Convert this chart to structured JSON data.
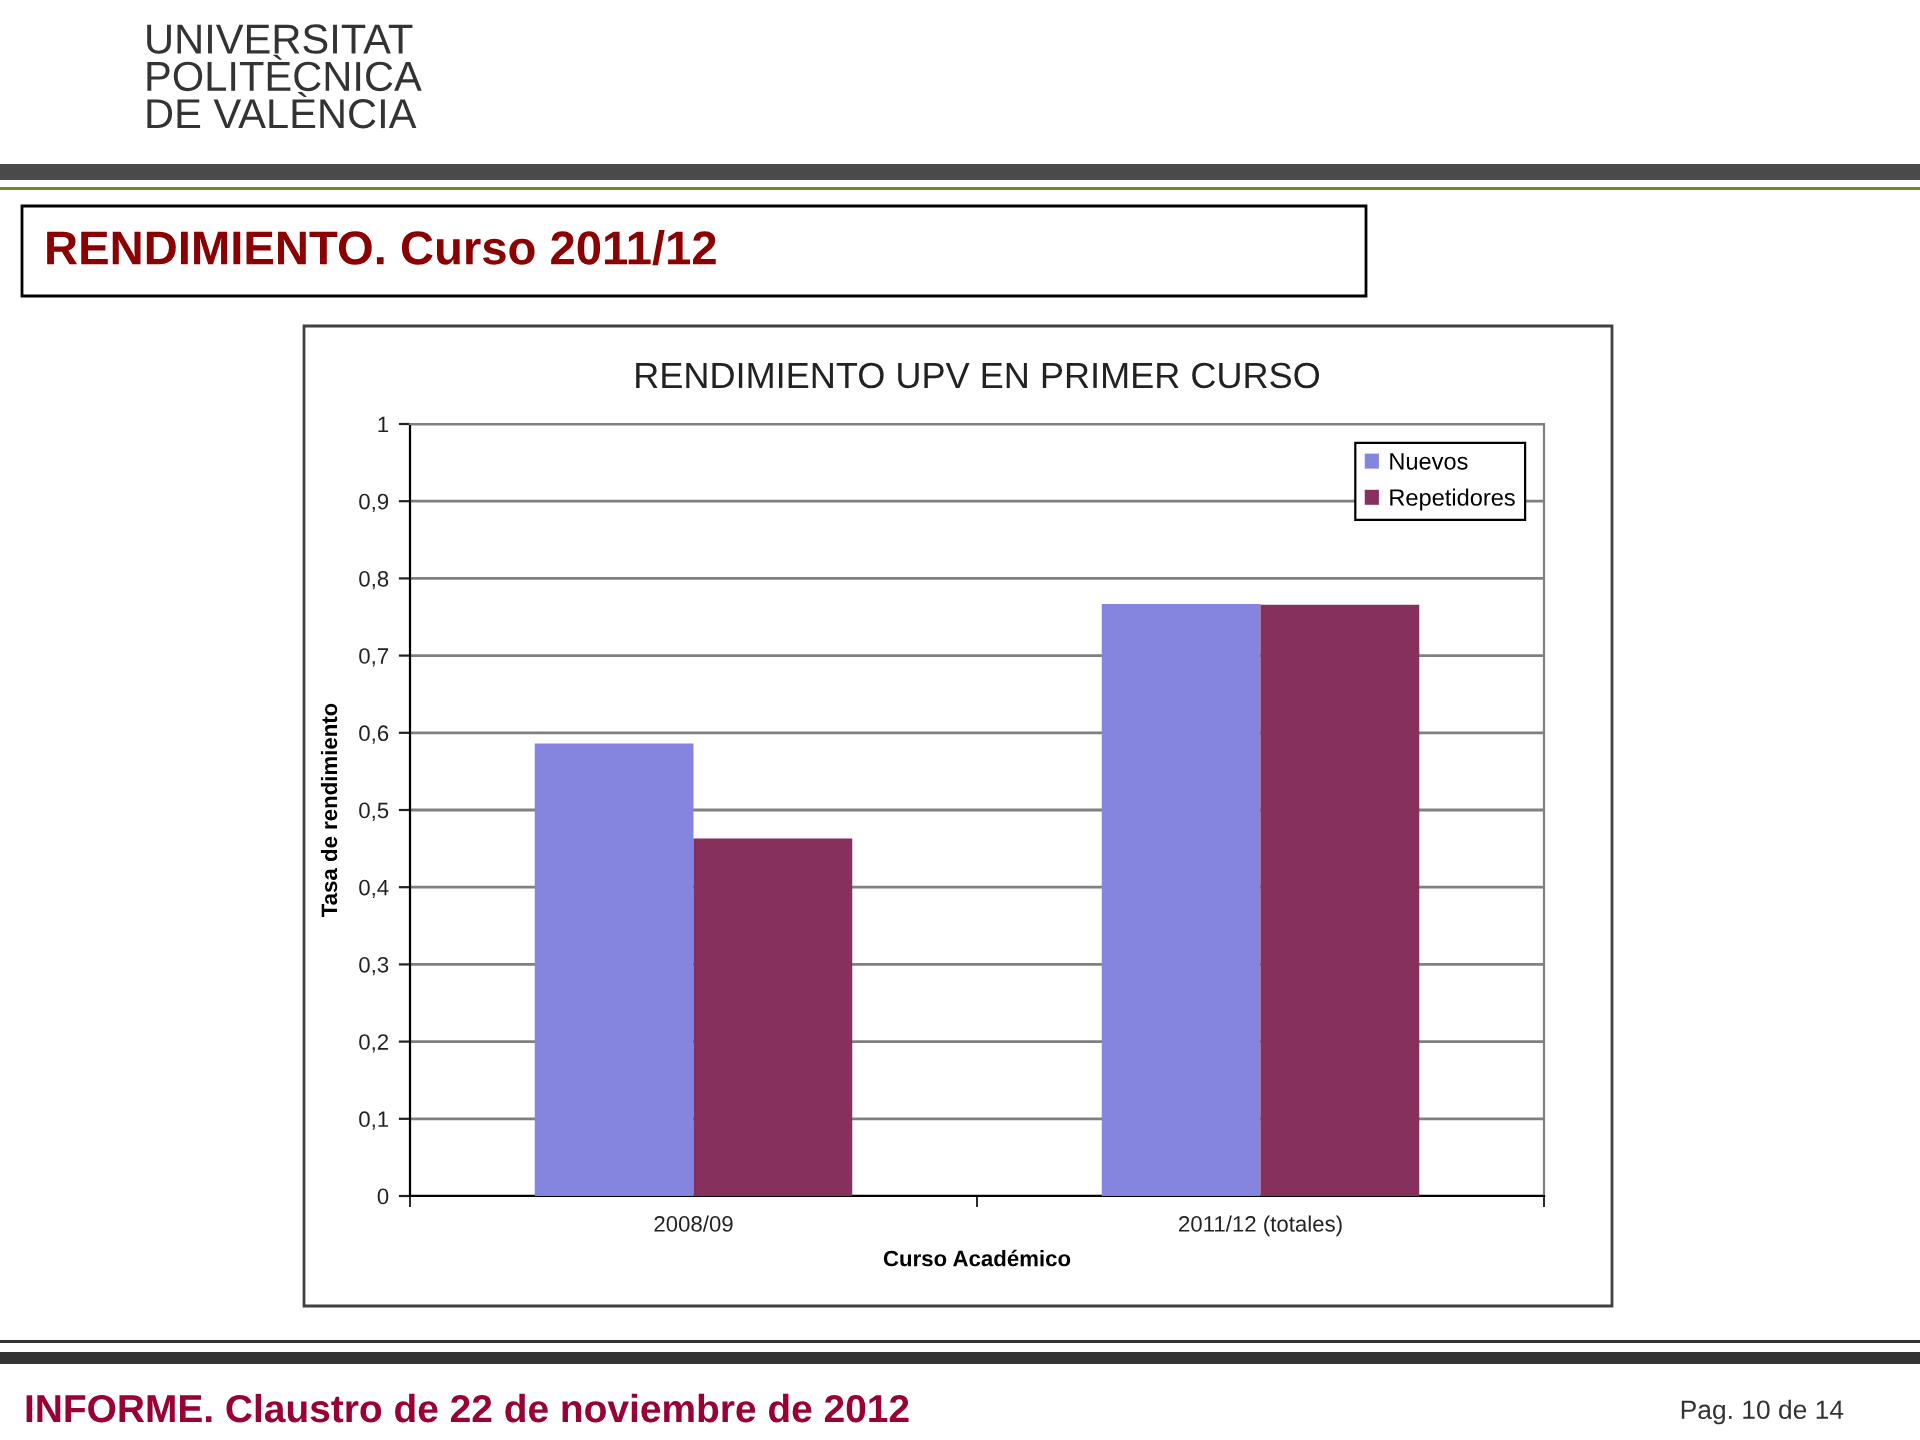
{
  "chart_data": {
    "type": "bar",
    "title": "RENDIMIENTO UPV EN PRIMER CURSO",
    "xlabel": "Curso Académico",
    "ylabel": "Tasa de rendimiento",
    "categories": [
      "2008/09",
      "2011/12 (totales)"
    ],
    "series": [
      {
        "name": "Nuevos",
        "color": "#8585e0",
        "values": [
          0.586,
          0.767
        ]
      },
      {
        "name": "Repetidores",
        "color": "#85305d",
        "values": [
          0.463,
          0.766
        ]
      }
    ],
    "ylim": [
      0,
      1
    ],
    "yticks": [
      0,
      {
        "value": 0.1,
        "label": "0,1"
      },
      {
        "value": 0.2,
        "label": "0,2"
      },
      {
        "value": 0.3,
        "label": "0,3"
      },
      {
        "value": 0.4,
        "label": "0,4"
      },
      {
        "value": 0.5,
        "label": "0,5"
      },
      {
        "value": 0.6,
        "label": "0,6"
      },
      {
        "value": 0.7,
        "label": "0,7"
      },
      {
        "value": 0.8,
        "label": "0,8"
      },
      {
        "value": 0.9,
        "label": "0,9"
      },
      1
    ],
    "grid": "y",
    "legend": "top right",
    "annotations": [
      "RENDIMIENTO. Curso 2011/12",
      "UNIVERSITAT\nPOLITÈCNICA\nDE VALÈNCIA",
      "INFORME. Claustro de 22 de noviembre de 2012",
      "Pag. 10 de 14"
    ]
  }
}
